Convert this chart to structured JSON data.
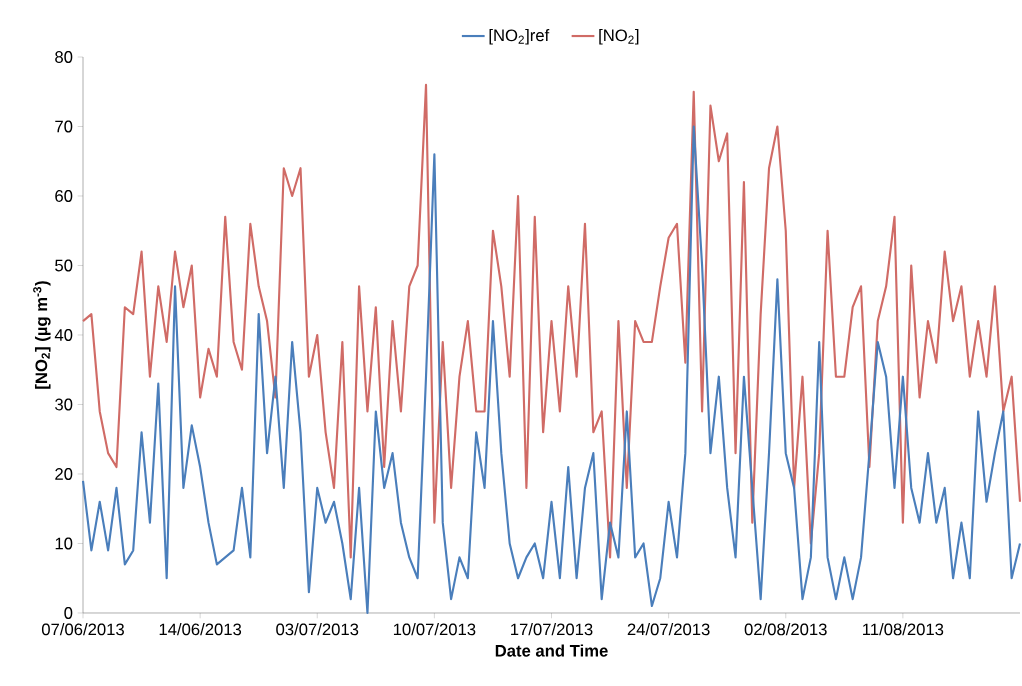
{
  "chart_data": {
    "type": "line",
    "xlabel": "Date and Time",
    "ylabel": "[NO$_{2}$] (µg m$^{-3}$)",
    "categories": [
      "07/06/2013",
      null,
      null,
      null,
      null,
      null,
      null,
      null,
      null,
      null,
      null,
      null,
      null,
      null,
      "14/06/2013",
      null,
      null,
      null,
      null,
      null,
      null,
      null,
      null,
      null,
      null,
      null,
      null,
      null,
      "03/07/2013",
      null,
      null,
      null,
      null,
      null,
      null,
      null,
      null,
      null,
      null,
      null,
      null,
      null,
      "10/07/2013",
      null,
      null,
      null,
      null,
      null,
      null,
      null,
      null,
      null,
      null,
      null,
      null,
      null,
      "17/07/2013",
      null,
      null,
      null,
      null,
      null,
      null,
      null,
      null,
      null,
      null,
      null,
      null,
      null,
      "24/07/2013",
      null,
      null,
      null,
      null,
      null,
      null,
      null,
      null,
      null,
      null,
      null,
      null,
      null,
      "02/08/2013",
      null,
      null,
      null,
      null,
      null,
      null,
      null,
      null,
      null,
      null,
      null,
      null,
      null,
      "11/08/2013",
      null,
      null,
      null,
      null,
      null,
      null,
      null,
      null,
      null,
      null,
      null,
      null,
      null,
      null
    ],
    "series": [
      {
        "name": "[NO$_{2}$]ref",
        "color": "#4a7ebb",
        "values": [
          19,
          9,
          16,
          9,
          18,
          7,
          9,
          26,
          13,
          33,
          5,
          47,
          18,
          27,
          21,
          13,
          7,
          8,
          9,
          18,
          8,
          43,
          23,
          34,
          18,
          39,
          26,
          3,
          18,
          13,
          16,
          10,
          2,
          18,
          0,
          29,
          18,
          23,
          13,
          8,
          5,
          34,
          66,
          13,
          2,
          8,
          5,
          26,
          18,
          42,
          23,
          10,
          5,
          8,
          10,
          5,
          16,
          5,
          21,
          5,
          18,
          23,
          2,
          13,
          8,
          29,
          8,
          10,
          1,
          5,
          16,
          8,
          23,
          70,
          50,
          23,
          34,
          18,
          8,
          34,
          18,
          2,
          23,
          48,
          23,
          18,
          2,
          8,
          39,
          8,
          2,
          8,
          2,
          8,
          23,
          39,
          34,
          18,
          34,
          18,
          13,
          23,
          13,
          18,
          5,
          13,
          5,
          29,
          16,
          23,
          29,
          5,
          10
        ]
      },
      {
        "name": "[NO$_{2}$]",
        "color": "#d06b66",
        "values": [
          42,
          43,
          29,
          23,
          21,
          44,
          43,
          52,
          34,
          47,
          39,
          52,
          44,
          50,
          31,
          38,
          34,
          57,
          39,
          35,
          56,
          47,
          42,
          31,
          64,
          60,
          64,
          34,
          40,
          26,
          18,
          39,
          8,
          47,
          29,
          44,
          21,
          42,
          29,
          47,
          50,
          76,
          13,
          39,
          18,
          34,
          42,
          29,
          29,
          55,
          47,
          34,
          60,
          18,
          57,
          26,
          42,
          29,
          47,
          34,
          56,
          26,
          29,
          8,
          42,
          18,
          42,
          39,
          39,
          47,
          54,
          56,
          36,
          75,
          29,
          73,
          65,
          69,
          23,
          62,
          13,
          43,
          64,
          70,
          55,
          18,
          34,
          10,
          23,
          55,
          34,
          34,
          44,
          47,
          21,
          42,
          47,
          57,
          13,
          50,
          31,
          42,
          36,
          52,
          42,
          47,
          34,
          42,
          34,
          47,
          29,
          34,
          16
        ]
      }
    ],
    "ylim": [
      0,
      80
    ],
    "yticks": [
      0,
      10,
      20,
      30,
      40,
      50,
      60,
      70,
      80
    ],
    "legend": "top",
    "marker": "none",
    "line_style": "solid"
  }
}
